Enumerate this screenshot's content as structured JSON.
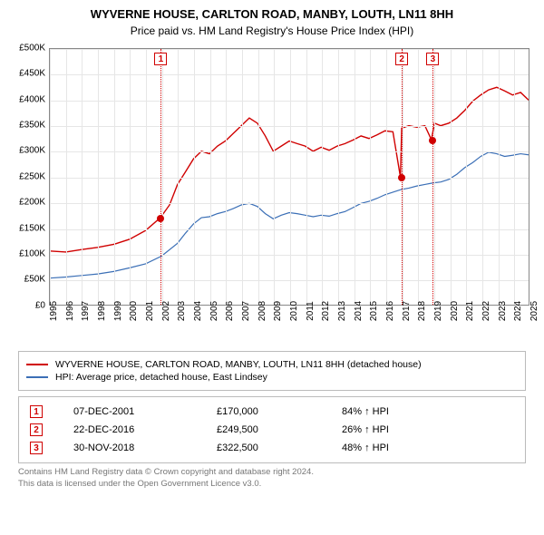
{
  "title": "WYVERNE HOUSE, CARLTON ROAD, MANBY, LOUTH, LN11 8HH",
  "subtitle": "Price paid vs. HM Land Registry's House Price Index (HPI)",
  "chart": {
    "type": "line",
    "background_color": "#ffffff",
    "grid_color": "#e6e6e6",
    "axis_color": "#888888",
    "ylim": [
      0,
      500000
    ],
    "ytick_step": 50000,
    "ytick_prefix": "£",
    "ytick_suffix": "K",
    "xlim": [
      1995,
      2025
    ],
    "xtick_step": 1,
    "label_fontsize": 10,
    "series": [
      {
        "id": "property",
        "color": "#d00000",
        "width": 1.4,
        "points": [
          [
            1995,
            105000
          ],
          [
            1996,
            103000
          ],
          [
            1997,
            108000
          ],
          [
            1998,
            112000
          ],
          [
            1999,
            118000
          ],
          [
            2000,
            128000
          ],
          [
            2001,
            145000
          ],
          [
            2001.93,
            170000
          ],
          [
            2002.5,
            195000
          ],
          [
            2003,
            235000
          ],
          [
            2003.5,
            260000
          ],
          [
            2004,
            285000
          ],
          [
            2004.5,
            300000
          ],
          [
            2005,
            295000
          ],
          [
            2005.5,
            310000
          ],
          [
            2006,
            320000
          ],
          [
            2006.5,
            335000
          ],
          [
            2007,
            350000
          ],
          [
            2007.5,
            365000
          ],
          [
            2008,
            355000
          ],
          [
            2008.5,
            330000
          ],
          [
            2009,
            300000
          ],
          [
            2009.5,
            310000
          ],
          [
            2010,
            320000
          ],
          [
            2010.5,
            315000
          ],
          [
            2011,
            310000
          ],
          [
            2011.5,
            300000
          ],
          [
            2012,
            308000
          ],
          [
            2012.5,
            302000
          ],
          [
            2013,
            310000
          ],
          [
            2013.5,
            315000
          ],
          [
            2014,
            322000
          ],
          [
            2014.5,
            330000
          ],
          [
            2015,
            325000
          ],
          [
            2015.5,
            332000
          ],
          [
            2016,
            340000
          ],
          [
            2016.5,
            338000
          ],
          [
            2016.97,
            249500
          ],
          [
            2017.05,
            345000
          ],
          [
            2017.5,
            350000
          ],
          [
            2018,
            347000
          ],
          [
            2018.5,
            350000
          ],
          [
            2018.91,
            322500
          ],
          [
            2019.1,
            355000
          ],
          [
            2019.5,
            350000
          ],
          [
            2020,
            355000
          ],
          [
            2020.5,
            365000
          ],
          [
            2021,
            380000
          ],
          [
            2021.5,
            398000
          ],
          [
            2022,
            410000
          ],
          [
            2022.5,
            420000
          ],
          [
            2023,
            425000
          ],
          [
            2023.5,
            418000
          ],
          [
            2024,
            410000
          ],
          [
            2024.5,
            415000
          ],
          [
            2025,
            400000
          ]
        ]
      },
      {
        "id": "hpi",
        "color": "#3b6fb6",
        "width": 1.2,
        "points": [
          [
            1995,
            52000
          ],
          [
            1996,
            54000
          ],
          [
            1997,
            57000
          ],
          [
            1998,
            60000
          ],
          [
            1999,
            65000
          ],
          [
            2000,
            72000
          ],
          [
            2001,
            80000
          ],
          [
            2002,
            95000
          ],
          [
            2003,
            120000
          ],
          [
            2003.5,
            140000
          ],
          [
            2004,
            158000
          ],
          [
            2004.5,
            170000
          ],
          [
            2005,
            172000
          ],
          [
            2005.5,
            178000
          ],
          [
            2006,
            182000
          ],
          [
            2006.5,
            188000
          ],
          [
            2007,
            195000
          ],
          [
            2007.5,
            198000
          ],
          [
            2008,
            192000
          ],
          [
            2008.5,
            178000
          ],
          [
            2009,
            168000
          ],
          [
            2009.5,
            175000
          ],
          [
            2010,
            180000
          ],
          [
            2010.5,
            178000
          ],
          [
            2011,
            175000
          ],
          [
            2011.5,
            172000
          ],
          [
            2012,
            175000
          ],
          [
            2012.5,
            173000
          ],
          [
            2013,
            178000
          ],
          [
            2013.5,
            182000
          ],
          [
            2014,
            190000
          ],
          [
            2014.5,
            198000
          ],
          [
            2015,
            202000
          ],
          [
            2015.5,
            208000
          ],
          [
            2016,
            215000
          ],
          [
            2016.5,
            220000
          ],
          [
            2017,
            225000
          ],
          [
            2017.5,
            228000
          ],
          [
            2018,
            232000
          ],
          [
            2018.5,
            235000
          ],
          [
            2019,
            238000
          ],
          [
            2019.5,
            240000
          ],
          [
            2020,
            245000
          ],
          [
            2020.5,
            255000
          ],
          [
            2021,
            268000
          ],
          [
            2021.5,
            278000
          ],
          [
            2022,
            290000
          ],
          [
            2022.5,
            298000
          ],
          [
            2023,
            295000
          ],
          [
            2023.5,
            290000
          ],
          [
            2024,
            292000
          ],
          [
            2024.5,
            295000
          ],
          [
            2025,
            293000
          ]
        ]
      }
    ],
    "sale_markers": [
      {
        "n": "1",
        "year": 2001.93,
        "price": 170000
      },
      {
        "n": "2",
        "year": 2016.97,
        "price": 249500
      },
      {
        "n": "3",
        "year": 2018.91,
        "price": 322500
      }
    ]
  },
  "legend": {
    "items": [
      {
        "color": "#d00000",
        "label": "WYVERNE HOUSE, CARLTON ROAD, MANBY, LOUTH, LN11 8HH (detached house)"
      },
      {
        "color": "#3b6fb6",
        "label": "HPI: Average price, detached house, East Lindsey"
      }
    ]
  },
  "sales": [
    {
      "n": "1",
      "date": "07-DEC-2001",
      "price": "£170,000",
      "pct": "84% ↑ HPI"
    },
    {
      "n": "2",
      "date": "22-DEC-2016",
      "price": "£249,500",
      "pct": "26% ↑ HPI"
    },
    {
      "n": "3",
      "date": "30-NOV-2018",
      "price": "£322,500",
      "pct": "48% ↑ HPI"
    }
  ],
  "footer": {
    "line1": "Contains HM Land Registry data © Crown copyright and database right 2024.",
    "line2": "This data is licensed under the Open Government Licence v3.0."
  }
}
